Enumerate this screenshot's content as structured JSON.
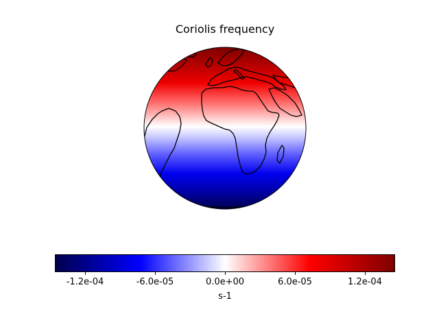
{
  "title": "Coriolis frequency",
  "projection": "orthographic",
  "field": "coriolis-parameter",
  "coastlines": true,
  "colormap": {
    "name": "seismic",
    "stops": [
      "#00004c",
      "#0000ff",
      "#ffffff",
      "#ff0000",
      "#7f0000"
    ]
  },
  "colorbar": {
    "orientation": "horizontal",
    "label": "s-1",
    "min": -0.0001458,
    "max": 0.0001458,
    "ticks": [
      {
        "value": -0.00012,
        "label": "-1.2e-04"
      },
      {
        "value": -6e-05,
        "label": "-6.0e-05"
      },
      {
        "value": 0.0,
        "label": "0.0e+00"
      },
      {
        "value": 6e-05,
        "label": "6.0e-05"
      },
      {
        "value": 0.00012,
        "label": "1.2e-04"
      }
    ]
  }
}
